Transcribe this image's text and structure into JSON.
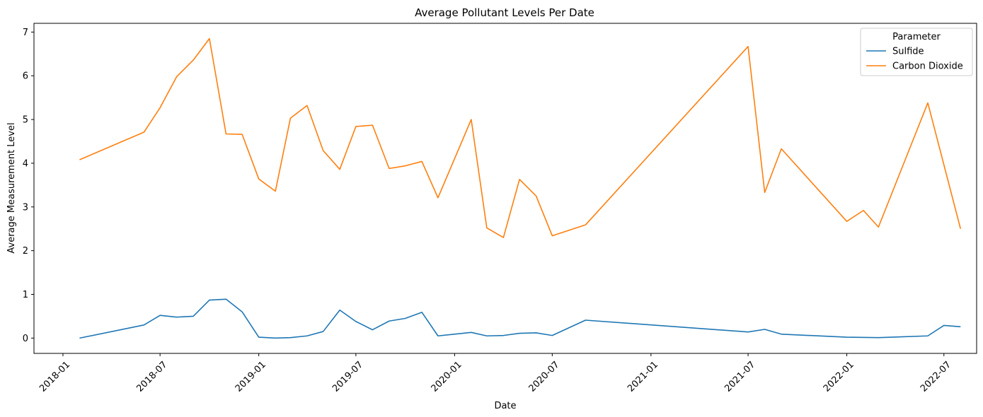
{
  "chart_data": {
    "type": "line",
    "title": "Average Pollutant Levels Per Date",
    "xlabel": "Date",
    "ylabel": "Average Measurement Level",
    "x_ticks": [
      "2018-01",
      "2018-07",
      "2019-01",
      "2019-07",
      "2020-01",
      "2020-07",
      "2021-01",
      "2021-07",
      "2022-01",
      "2022-07"
    ],
    "y_ticks": [
      "0",
      "1",
      "2",
      "3",
      "4",
      "5",
      "6",
      "7"
    ],
    "xlim": [
      "2017-11-08",
      "2022-08-31"
    ],
    "ylim": [
      -0.35,
      7.2
    ],
    "grid": false,
    "legend": {
      "title": "Parameter",
      "position": "top-right"
    },
    "series": [
      {
        "name": "Sulfide",
        "color": "#1f77b4",
        "points": [
          [
            "2018-02-01",
            0.0
          ],
          [
            "2018-06-01",
            0.3
          ],
          [
            "2018-07-01",
            0.52
          ],
          [
            "2018-08-01",
            0.48
          ],
          [
            "2018-09-01",
            0.5
          ],
          [
            "2018-10-01",
            0.87
          ],
          [
            "2018-11-01",
            0.89
          ],
          [
            "2018-12-01",
            0.6
          ],
          [
            "2019-01-01",
            0.02
          ],
          [
            "2019-02-01",
            0.0
          ],
          [
            "2019-03-01",
            0.01
          ],
          [
            "2019-04-01",
            0.05
          ],
          [
            "2019-05-01",
            0.15
          ],
          [
            "2019-06-01",
            0.64
          ],
          [
            "2019-07-01",
            0.38
          ],
          [
            "2019-08-01",
            0.19
          ],
          [
            "2019-09-01",
            0.39
          ],
          [
            "2019-10-01",
            0.45
          ],
          [
            "2019-11-01",
            0.59
          ],
          [
            "2019-12-01",
            0.05
          ],
          [
            "2020-02-01",
            0.13
          ],
          [
            "2020-03-01",
            0.05
          ],
          [
            "2020-04-01",
            0.06
          ],
          [
            "2020-05-01",
            0.11
          ],
          [
            "2020-06-01",
            0.12
          ],
          [
            "2020-07-01",
            0.06
          ],
          [
            "2020-09-01",
            0.41
          ],
          [
            "2021-07-01",
            0.14
          ],
          [
            "2021-08-01",
            0.2
          ],
          [
            "2021-09-01",
            0.09
          ],
          [
            "2022-01-01",
            0.02
          ],
          [
            "2022-03-01",
            0.01
          ],
          [
            "2022-06-01",
            0.05
          ],
          [
            "2022-07-01",
            0.29
          ],
          [
            "2022-08-01",
            0.26
          ]
        ]
      },
      {
        "name": "Carbon Dioxide",
        "color": "#ff7f0e",
        "points": [
          [
            "2018-02-01",
            4.08
          ],
          [
            "2018-06-01",
            4.71
          ],
          [
            "2018-07-01",
            5.27
          ],
          [
            "2018-08-01",
            5.98
          ],
          [
            "2018-09-01",
            6.36
          ],
          [
            "2018-10-01",
            6.85
          ],
          [
            "2018-11-01",
            4.67
          ],
          [
            "2018-12-01",
            4.66
          ],
          [
            "2019-01-01",
            3.64
          ],
          [
            "2019-02-01",
            3.36
          ],
          [
            "2019-03-01",
            5.03
          ],
          [
            "2019-04-01",
            5.32
          ],
          [
            "2019-05-01",
            4.29
          ],
          [
            "2019-06-01",
            3.86
          ],
          [
            "2019-07-01",
            4.84
          ],
          [
            "2019-08-01",
            4.87
          ],
          [
            "2019-09-01",
            3.88
          ],
          [
            "2019-10-01",
            3.94
          ],
          [
            "2019-11-01",
            4.04
          ],
          [
            "2019-12-01",
            3.21
          ],
          [
            "2020-02-01",
            5.0
          ],
          [
            "2020-03-01",
            2.52
          ],
          [
            "2020-04-01",
            2.3
          ],
          [
            "2020-05-01",
            3.63
          ],
          [
            "2020-06-01",
            3.25
          ],
          [
            "2020-07-01",
            2.34
          ],
          [
            "2020-09-01",
            2.59
          ],
          [
            "2021-07-01",
            6.67
          ],
          [
            "2021-08-01",
            3.33
          ],
          [
            "2021-09-01",
            4.33
          ],
          [
            "2022-01-01",
            2.67
          ],
          [
            "2022-02-01",
            2.92
          ],
          [
            "2022-03-01",
            2.54
          ],
          [
            "2022-06-01",
            5.38
          ],
          [
            "2022-08-01",
            2.5
          ]
        ]
      }
    ]
  }
}
